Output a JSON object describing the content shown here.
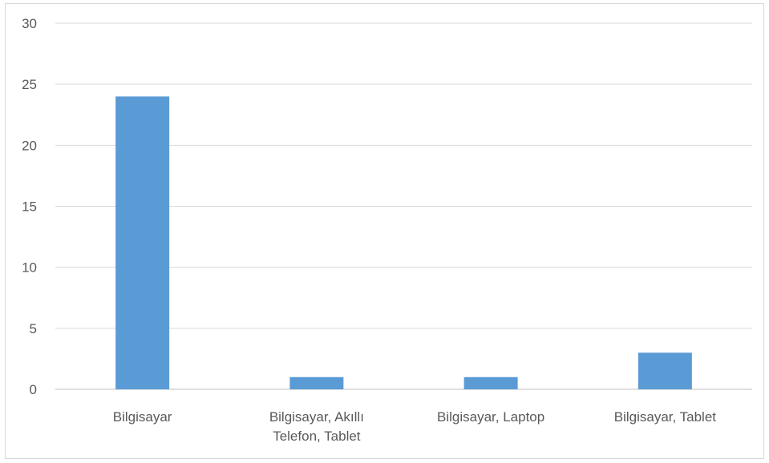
{
  "chart_data": {
    "type": "bar",
    "categories": [
      [
        "Bilgisayar"
      ],
      [
        "Bilgisayar, Akıllı",
        "Telefon, Tablet"
      ],
      [
        "Bilgisayar, Laptop"
      ],
      [
        "Bilgisayar, Tablet"
      ]
    ],
    "values": [
      24,
      1,
      1,
      3
    ],
    "ylim": [
      0,
      30
    ],
    "yticks": [
      "0",
      "5",
      "10",
      "15",
      "20",
      "25",
      "30"
    ],
    "grid": true,
    "bar_color": "#5b9bd5",
    "grid_color": "#d9d9d9",
    "title": "",
    "xlabel": "",
    "ylabel": ""
  }
}
